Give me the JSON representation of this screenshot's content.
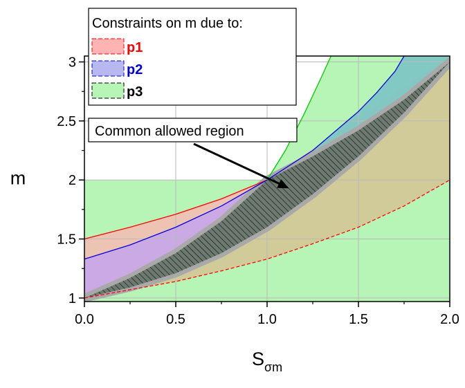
{
  "chart_data": {
    "type": "area",
    "xlabel": "S",
    "xlabel_sub": "σm",
    "ylabel": "m",
    "xlim": [
      0,
      2
    ],
    "ylim": [
      0.97,
      3.05
    ],
    "x_ticks": [
      0.0,
      0.5,
      1.0,
      1.5,
      2.0
    ],
    "x_tick_labels": [
      "0.0",
      "0.5",
      "1.0",
      "1.5",
      "2.0"
    ],
    "y_ticks": [
      1,
      1.5,
      2,
      2.5,
      3
    ],
    "y_tick_labels": [
      "1",
      "1.5",
      "2",
      "2.5",
      "3"
    ],
    "grid": true,
    "legend": {
      "title": "Constraints on m due to:",
      "placement": "top-left",
      "entries": [
        {
          "name": "p1",
          "color": "#ff0000",
          "fill": "#ffb3b3"
        },
        {
          "name": "p2",
          "color": "#0000dd",
          "fill": "#b8b8f0"
        },
        {
          "name": "p3",
          "color": "#000000",
          "fill": "#b6f5b6"
        }
      ]
    },
    "series": [
      {
        "name": "p1",
        "color": "#ff0000",
        "fill": "#ffb3b3",
        "upper": {
          "x": [
            0,
            0.25,
            0.5,
            0.75,
            1.0
          ],
          "y": [
            1.5,
            1.6,
            1.71,
            1.84,
            2.0
          ]
        },
        "lower_dashed": {
          "x": [
            0,
            0.25,
            0.5,
            0.75,
            1.0,
            1.25,
            1.5,
            1.75,
            2.0
          ],
          "y": [
            1.0,
            1.07,
            1.14,
            1.23,
            1.33,
            1.46,
            1.6,
            1.78,
            2.0
          ]
        }
      },
      {
        "name": "p2",
        "color": "#0000dd",
        "fill": "#b8b8f0",
        "upper": {
          "x": [
            0,
            0.25,
            0.5,
            0.75,
            1.0,
            1.25,
            1.5,
            1.6,
            1.7,
            1.75
          ],
          "y": [
            1.33,
            1.45,
            1.6,
            1.78,
            2.0,
            2.25,
            2.58,
            2.74,
            2.92,
            3.05
          ]
        },
        "lower": {
          "x": [
            0,
            0.25,
            0.5,
            0.75,
            1.0
          ],
          "y": [
            1.0,
            1.17,
            1.38,
            1.65,
            2.0
          ]
        }
      },
      {
        "name": "p3",
        "color": "#00cc00",
        "fill": "#b6f5b6",
        "upper": {
          "x": [
            1.0,
            1.1,
            1.2,
            1.3,
            1.35
          ],
          "y": [
            2.0,
            2.25,
            2.55,
            2.88,
            3.05
          ]
        }
      }
    ],
    "common_region": {
      "upper": {
        "x": [
          0,
          0.25,
          0.5,
          0.75,
          1.0,
          1.25,
          1.5,
          1.75,
          2.0
        ],
        "y": [
          1.0,
          1.17,
          1.38,
          1.65,
          2.0,
          2.2,
          2.42,
          2.68,
          3.0
        ]
      },
      "lower": {
        "x": [
          0,
          0.25,
          0.5,
          0.75,
          1.0,
          1.25,
          1.5,
          1.75,
          2.0
        ],
        "y": [
          1.0,
          1.09,
          1.21,
          1.38,
          1.6,
          1.88,
          2.2,
          2.57,
          3.0
        ]
      }
    },
    "annotation": {
      "text": "Common allowed region",
      "arrow_to": {
        "x": 1.12,
        "y": 1.93
      }
    },
    "colors": {
      "overlap_red_blue": "#c9a6e6",
      "overlap_blue_green": "#7cc8c0",
      "overlap_green_red": "#cdcc96",
      "region_outline": "#a9a9a9"
    }
  }
}
